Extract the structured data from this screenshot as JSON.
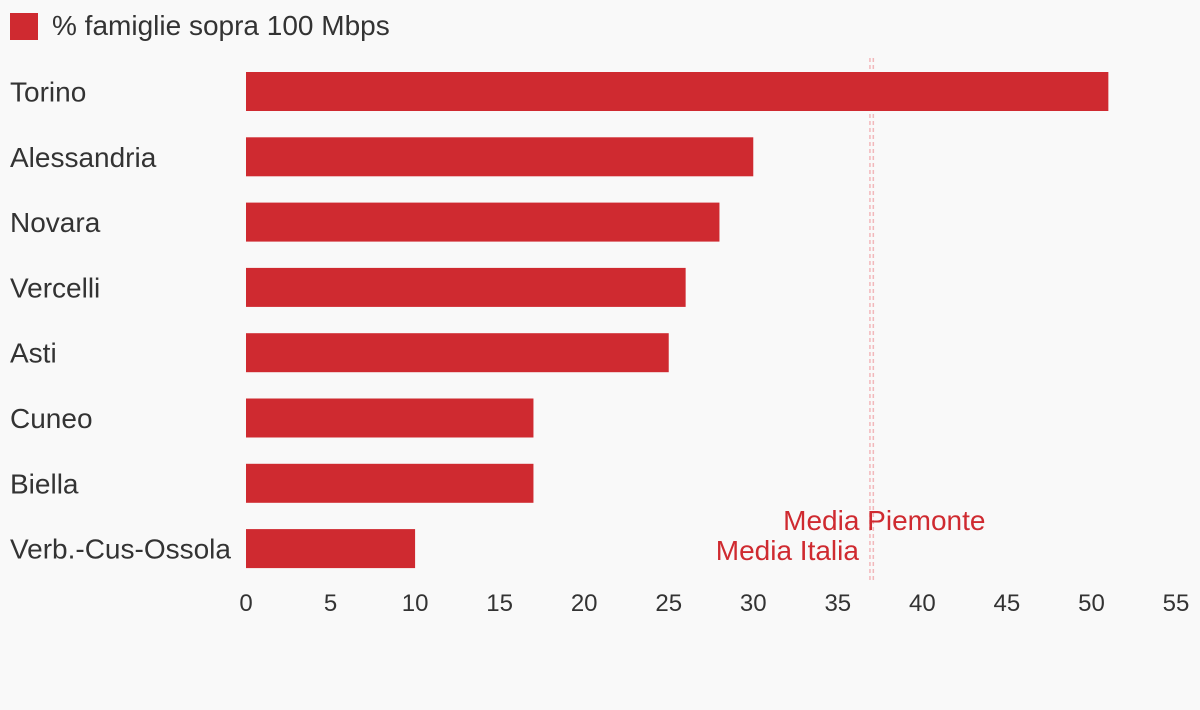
{
  "legend": {
    "label": "% famiglie sopra 100 Mbps",
    "color": "#cf2a30"
  },
  "chart_data": {
    "type": "bar",
    "orientation": "horizontal",
    "categories": [
      "Torino",
      "Alessandria",
      "Novara",
      "Vercelli",
      "Asti",
      "Cuneo",
      "Biella",
      "Verb.-Cus-Ossola"
    ],
    "series": [
      {
        "name": "% famiglie sopra 100 Mbps",
        "values": [
          51,
          30,
          28,
          26,
          25,
          17,
          17,
          10
        ]
      }
    ],
    "xlim": [
      0,
      55
    ],
    "xticks": [
      0,
      5,
      10,
      15,
      20,
      25,
      30,
      35,
      40,
      45,
      50,
      55
    ],
    "bar_color": "#cf2a30",
    "reference_lines": [
      {
        "label": "Media Piemonte",
        "value": 37.1,
        "color": "#cf2a30"
      },
      {
        "label": "Media Italia",
        "value": 36.9,
        "color": "#cf2a30"
      }
    ],
    "grid": false,
    "legend_position": "top-left"
  }
}
